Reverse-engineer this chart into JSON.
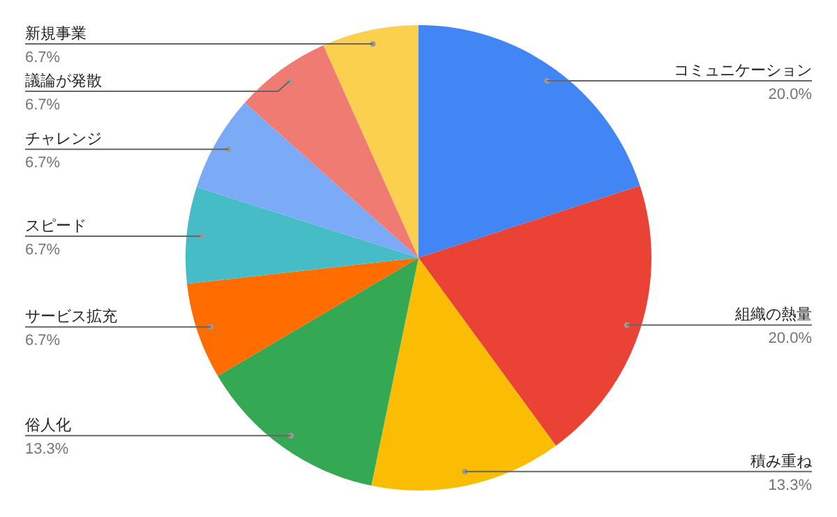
{
  "chart_data": {
    "type": "pie",
    "categories": [
      "コミュニケーション",
      "組織の熱量",
      "積み重ね",
      "俗人化",
      "サービス拡充",
      "スピード",
      "チャレンジ",
      "議論が発散",
      "新規事業"
    ],
    "values": [
      20.0,
      20.0,
      13.3,
      13.3,
      6.7,
      6.7,
      6.7,
      6.7,
      6.7
    ],
    "value_labels": [
      "20.0%",
      "20.0%",
      "13.3%",
      "13.3%",
      "6.7%",
      "6.7%",
      "6.7%",
      "6.7%",
      "6.7%"
    ],
    "colors": [
      "#4285f4",
      "#ea4335",
      "#fbbc04",
      "#34a853",
      "#ff6d01",
      "#46bdc6",
      "#7baaf7",
      "#f07b72",
      "#fcd04f"
    ],
    "legend": false
  }
}
